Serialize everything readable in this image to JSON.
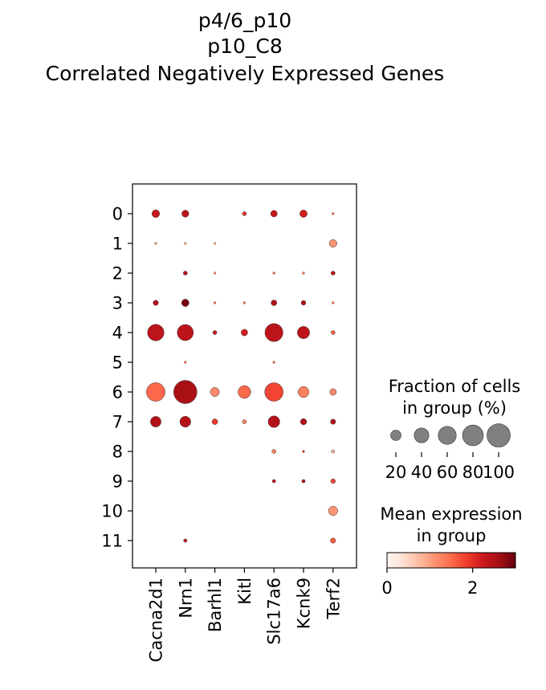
{
  "chart_data": {
    "type": "dotplot",
    "title_lines": [
      "p4/6_p10",
      "p10_C8",
      "Correlated Negatively Expressed Genes"
    ],
    "genes": [
      "Cacna2d1",
      "Nrn1",
      "Barhl1",
      "Kitl",
      "Slc17a6",
      "Kcnk9",
      "Terf2"
    ],
    "groups": [
      "0",
      "1",
      "2",
      "3",
      "4",
      "5",
      "6",
      "7",
      "8",
      "9",
      "10",
      "11"
    ],
    "fraction": [
      [
        11,
        9,
        0,
        3,
        8,
        10,
        1
      ],
      [
        1,
        1,
        1,
        0,
        0,
        0,
        11
      ],
      [
        0,
        3,
        1,
        0,
        1,
        1,
        3
      ],
      [
        5,
        10,
        1,
        1,
        6,
        4,
        1
      ],
      [
        50,
        48,
        3,
        8,
        60,
        28,
        3
      ],
      [
        0,
        1,
        0,
        0,
        1,
        0,
        0
      ],
      [
        64,
        100,
        15,
        30,
        63,
        22,
        8
      ],
      [
        21,
        22,
        6,
        3,
        25,
        7,
        5
      ],
      [
        0,
        0,
        0,
        0,
        3,
        1,
        2
      ],
      [
        0,
        0,
        0,
        0,
        2,
        2,
        4
      ],
      [
        0,
        0,
        0,
        0,
        0,
        0,
        16
      ],
      [
        0,
        2,
        0,
        0,
        0,
        0,
        5
      ]
    ],
    "mean_expression": [
      [
        2.3,
        2.4,
        0,
        2.0,
        2.3,
        2.2,
        1.5
      ],
      [
        1.0,
        1.0,
        1.0,
        0,
        0,
        0,
        1.1
      ],
      [
        0,
        2.5,
        1.2,
        0,
        1.5,
        1.5,
        2.4
      ],
      [
        2.5,
        2.9,
        1.5,
        1.5,
        2.5,
        2.5,
        1.5
      ],
      [
        2.4,
        2.4,
        2.3,
        2.2,
        2.4,
        2.4,
        1.6
      ],
      [
        0,
        1.5,
        0,
        0,
        1.5,
        0,
        0
      ],
      [
        1.5,
        2.6,
        1.2,
        1.5,
        1.8,
        1.3,
        1.2
      ],
      [
        2.5,
        2.5,
        1.9,
        1.3,
        2.5,
        2.5,
        2.5
      ],
      [
        0,
        0,
        0,
        0,
        1.3,
        2.0,
        0.8
      ],
      [
        0,
        0,
        0,
        0,
        2.3,
        2.4,
        1.8
      ],
      [
        0,
        0,
        0,
        0,
        0,
        0,
        1.1
      ],
      [
        0,
        2.4,
        0,
        0,
        0,
        0,
        1.6
      ]
    ],
    "size_legend": {
      "title_lines": [
        "Fraction of cells",
        "in group (%)"
      ],
      "values": [
        20,
        40,
        60,
        80,
        100
      ],
      "labels": [
        "20",
        "40",
        "60",
        "80",
        "100"
      ]
    },
    "color_legend": {
      "title_lines": [
        "Mean expression",
        "in group"
      ],
      "range": [
        0,
        3
      ],
      "ticks": [
        0,
        2
      ],
      "tick_labels": [
        "0",
        "2"
      ],
      "colormap": "Reds"
    }
  }
}
